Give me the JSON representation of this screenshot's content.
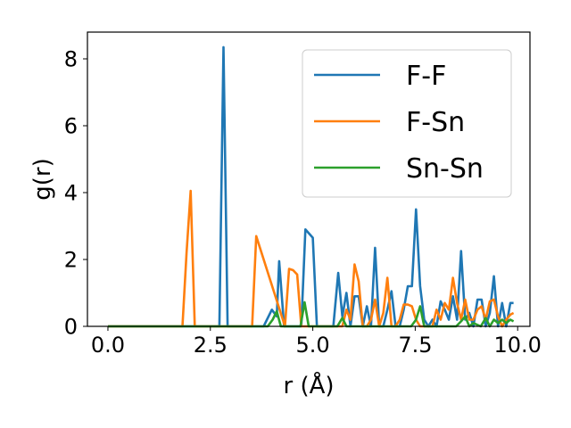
{
  "chart_data": {
    "type": "line",
    "xlabel": "r (Å)",
    "ylabel": "g(r)",
    "xlim": [
      -0.5,
      10.3
    ],
    "ylim": [
      0,
      8.8
    ],
    "xticks": [
      0.0,
      2.5,
      5.0,
      7.5,
      10.0
    ],
    "xtick_labels": [
      "0.0",
      "2.5",
      "5.0",
      "7.5",
      "10.0"
    ],
    "yticks": [
      0,
      2,
      4,
      6,
      8
    ],
    "ytick_labels": [
      "0",
      "2",
      "4",
      "6",
      "8"
    ],
    "grid": false,
    "legend": "top-right",
    "series": [
      {
        "name": "F-F",
        "color": "#1f77b4",
        "x": [
          0.0,
          2.72,
          2.82,
          2.92,
          3.02,
          3.8,
          4.0,
          4.12,
          4.18,
          4.3,
          4.72,
          4.82,
          5.0,
          5.1,
          5.5,
          5.62,
          5.72,
          5.82,
          5.92,
          6.02,
          6.12,
          6.22,
          6.32,
          6.42,
          6.52,
          6.62,
          6.72,
          6.82,
          6.92,
          7.02,
          7.12,
          7.22,
          7.32,
          7.42,
          7.52,
          7.62,
          7.72,
          7.82,
          7.92,
          8.02,
          8.12,
          8.22,
          8.32,
          8.42,
          8.52,
          8.62,
          8.72,
          8.82,
          8.92,
          9.02,
          9.12,
          9.22,
          9.32,
          9.42,
          9.52,
          9.62,
          9.72,
          9.82,
          9.9
        ],
        "y": [
          0,
          0,
          8.35,
          0,
          0,
          0,
          0.5,
          0.3,
          1.95,
          0,
          0,
          2.9,
          2.65,
          0,
          0,
          1.6,
          0.3,
          1.0,
          0,
          0.9,
          0.9,
          0,
          0.6,
          0,
          2.35,
          0,
          0,
          0.5,
          1.05,
          0,
          0,
          0.5,
          1.2,
          1.2,
          3.5,
          1.2,
          0.2,
          0,
          0.2,
          0,
          0.75,
          0.5,
          0.2,
          0.9,
          0.2,
          2.25,
          0.2,
          0.4,
          0,
          0.8,
          0.8,
          0,
          0.4,
          1.5,
          0,
          0.7,
          0,
          0.7,
          0.7
        ]
      },
      {
        "name": "F-Sn",
        "color": "#ff7f0e",
        "x": [
          0.0,
          1.82,
          1.92,
          2.02,
          2.12,
          3.42,
          3.52,
          3.62,
          4.32,
          4.42,
          4.52,
          4.62,
          4.72,
          5.62,
          5.72,
          5.82,
          5.92,
          6.02,
          6.12,
          6.22,
          6.32,
          6.42,
          6.52,
          6.62,
          6.72,
          6.82,
          6.92,
          7.02,
          7.12,
          7.22,
          7.32,
          7.42,
          7.52,
          7.62,
          7.72,
          7.82,
          7.92,
          8.02,
          8.12,
          8.22,
          8.32,
          8.42,
          8.52,
          8.62,
          8.72,
          8.82,
          8.92,
          9.02,
          9.12,
          9.22,
          9.32,
          9.42,
          9.52,
          9.62,
          9.72,
          9.82,
          9.9
        ],
        "y": [
          0,
          0,
          2.2,
          4.05,
          0,
          0,
          0,
          2.7,
          0,
          1.72,
          1.68,
          1.55,
          0,
          0,
          0,
          0.5,
          0.2,
          1.85,
          1.35,
          0,
          0,
          0.2,
          0.8,
          0,
          0.4,
          1.45,
          0,
          0,
          0.2,
          0.65,
          0.65,
          0.6,
          0.2,
          0,
          0,
          0,
          0,
          0.5,
          0.2,
          0.7,
          0.5,
          1.45,
          0.7,
          0.2,
          0.8,
          0.2,
          0.2,
          0.5,
          0.6,
          0.2,
          0.75,
          0.8,
          0.3,
          0,
          0.2,
          0.35,
          0.4
        ]
      },
      {
        "name": "Sn-Sn",
        "color": "#2ca02c",
        "x": [
          0.0,
          3.9,
          4.02,
          4.12,
          4.22,
          4.7,
          4.8,
          4.9,
          5.6,
          5.72,
          5.82,
          5.9,
          7.4,
          7.52,
          7.62,
          7.72,
          8.5,
          8.62,
          8.72,
          8.82,
          8.92,
          9.1,
          9.22,
          9.32,
          9.42,
          9.52,
          9.62,
          9.72,
          9.82,
          9.9
        ],
        "y": [
          0,
          0,
          0.2,
          0.45,
          0,
          0,
          0.72,
          0,
          0,
          0.25,
          0,
          0,
          0,
          0.2,
          0.6,
          0,
          0,
          0.15,
          0.3,
          0,
          0.1,
          0,
          0.25,
          0,
          0.2,
          0.1,
          0.2,
          0.1,
          0.2,
          0.15
        ]
      }
    ]
  }
}
